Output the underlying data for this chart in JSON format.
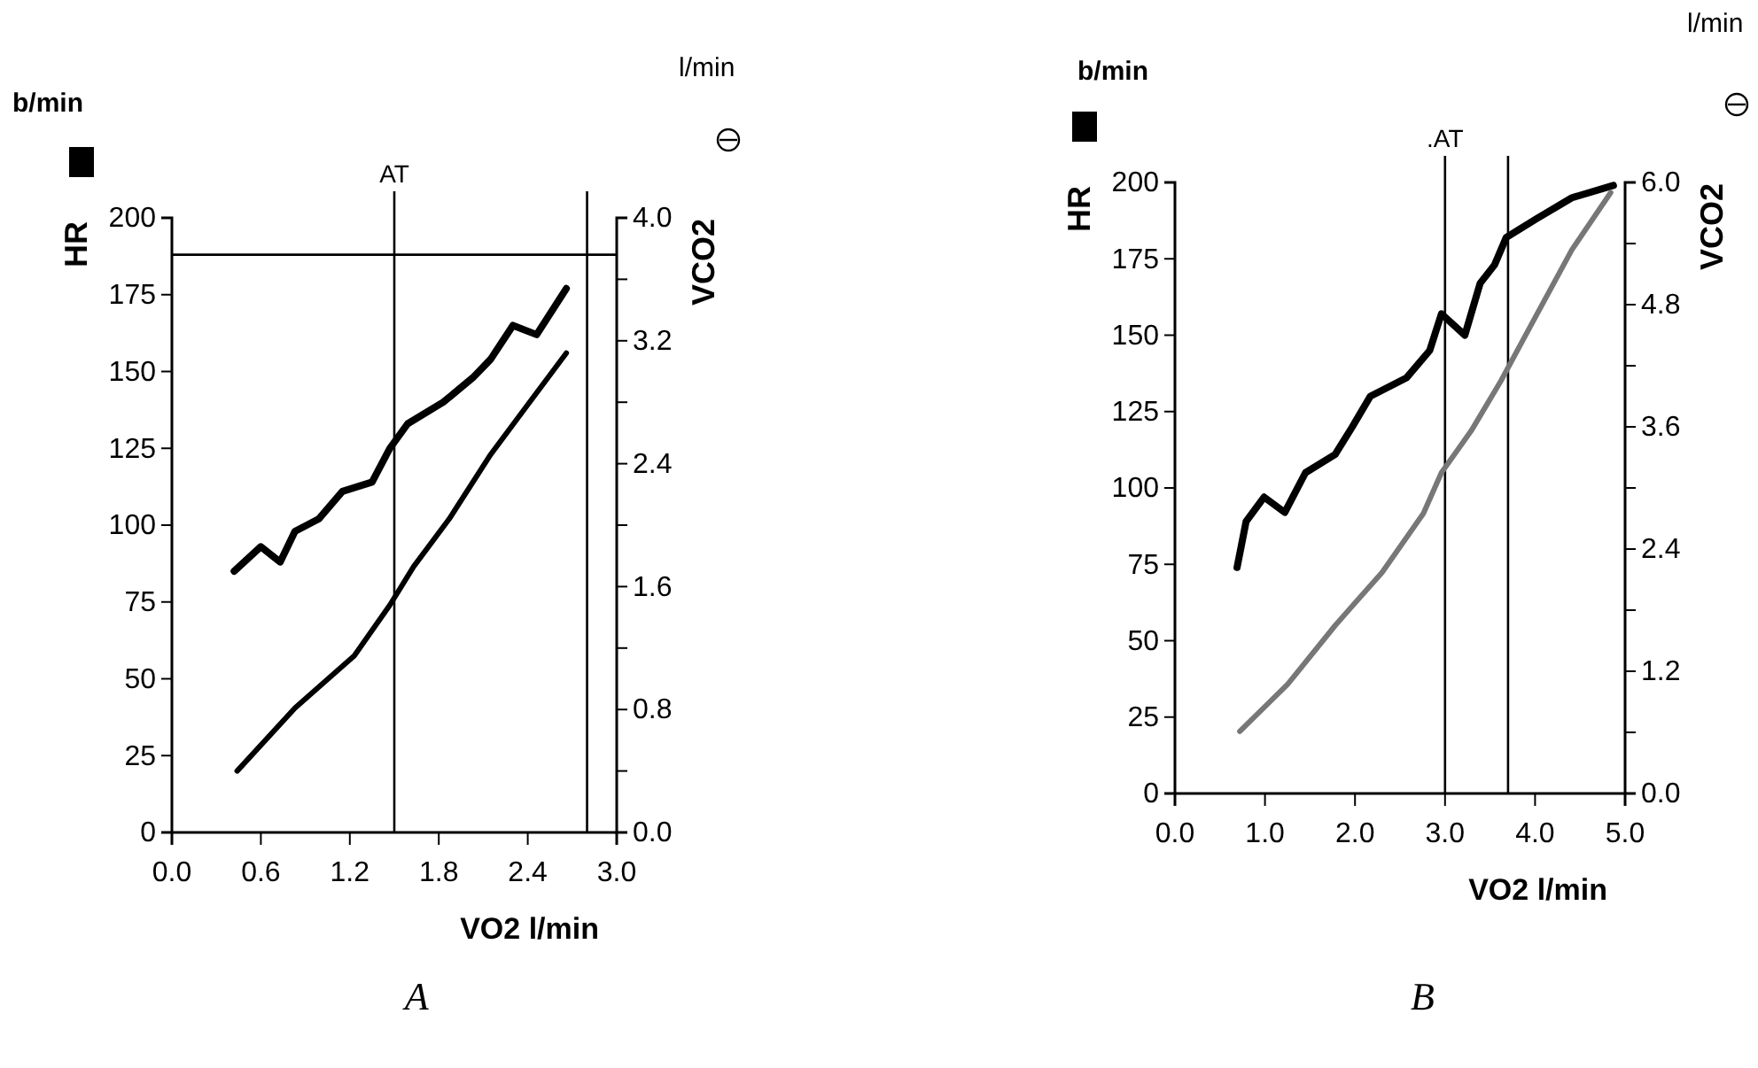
{
  "chart_data": [
    {
      "type": "line",
      "title": "A",
      "xlabel": "VO2 l/min",
      "ylabel": "HR",
      "y2label": "VCO2",
      "annotations": [
        "b/min",
        "l/min"
      ],
      "marker": "none",
      "grid": false,
      "xlim": [
        0,
        3.0
      ],
      "xticks": [
        {
          "value": 0,
          "label": "0.0"
        },
        {
          "value": 0.6,
          "label": "0.6"
        },
        {
          "value": 1.2,
          "label": "1.2"
        },
        {
          "value": 1.8,
          "label": "1.8"
        },
        {
          "value": 2.4,
          "label": "2.4"
        },
        {
          "value": 3.0,
          "label": "3.0"
        }
      ],
      "ylim": [
        0,
        200
      ],
      "yticks": [
        0,
        25,
        50,
        75,
        100,
        125,
        150,
        175,
        200
      ],
      "y2lim": [
        0,
        4.0
      ],
      "y2ticks": [
        {
          "value": 0,
          "label": "0.0"
        },
        {
          "value": 0.4,
          "label": null
        },
        {
          "value": 0.8,
          "label": "0.8"
        },
        {
          "value": 1.2,
          "label": null
        },
        {
          "value": 1.6,
          "label": "1.6"
        },
        {
          "value": 2.0,
          "label": null
        },
        {
          "value": 2.4,
          "label": "2.4"
        },
        {
          "value": 2.8,
          "label": null
        },
        {
          "value": 3.2,
          "label": "3.2"
        },
        {
          "value": 3.6,
          "label": null
        },
        {
          "value": 4.0,
          "label": "4.0"
        }
      ],
      "ref_lines": [
        {
          "axis": "x",
          "value": 1.5,
          "label": "AT"
        },
        {
          "axis": "x",
          "value": 2.8,
          "label": null
        },
        {
          "axis": "y",
          "value": 188,
          "label": null
        }
      ],
      "series": [
        {
          "color": "#000000",
          "x": [
            0.42,
            0.6,
            0.73,
            0.83,
            0.99,
            1.15,
            1.35,
            1.47,
            1.59,
            1.83,
            2.03,
            2.15,
            2.3,
            2.46,
            2.66
          ],
          "values": [
            85,
            93,
            88,
            98,
            102,
            111,
            114,
            125,
            133,
            140,
            148,
            154,
            165,
            162,
            177
          ]
        },
        {
          "color": "#000000",
          "axis": "y2",
          "x": [
            0.44,
            0.83,
            1.23,
            1.47,
            1.63,
            1.87,
            2.15,
            2.42,
            2.66
          ],
          "values": [
            0.4,
            0.81,
            1.15,
            1.48,
            1.73,
            2.04,
            2.46,
            2.81,
            3.12
          ]
        }
      ]
    },
    {
      "type": "line",
      "title": "B",
      "xlabel": "VO2 l/min",
      "ylabel": "HR",
      "y2label": "VCO2",
      "annotations": [
        "b/min",
        "l/min"
      ],
      "marker": "none",
      "grid": false,
      "xlim": [
        0,
        5.0
      ],
      "xticks": [
        {
          "value": 0,
          "label": "0.0"
        },
        {
          "value": 1,
          "label": "1.0"
        },
        {
          "value": 2,
          "label": "2.0"
        },
        {
          "value": 3,
          "label": "3.0"
        },
        {
          "value": 4,
          "label": "4.0"
        },
        {
          "value": 5,
          "label": "5.0"
        }
      ],
      "ylim": [
        0,
        200
      ],
      "yticks": [
        0,
        25,
        50,
        75,
        100,
        125,
        150,
        175,
        200
      ],
      "y2lim": [
        0,
        6.0
      ],
      "y2ticks": [
        {
          "value": 0,
          "label": "0.0"
        },
        {
          "value": 0.6,
          "label": null
        },
        {
          "value": 1.2,
          "label": "1.2"
        },
        {
          "value": 1.8,
          "label": null
        },
        {
          "value": 2.4,
          "label": "2.4"
        },
        {
          "value": 3.0,
          "label": null
        },
        {
          "value": 3.6,
          "label": "3.6"
        },
        {
          "value": 4.2,
          "label": null
        },
        {
          "value": 4.8,
          "label": "4.8"
        },
        {
          "value": 5.4,
          "label": null
        },
        {
          "value": 6.0,
          "label": "6.0"
        }
      ],
      "ref_lines": [
        {
          "axis": "x",
          "value": 3.0,
          "label": ".AT"
        },
        {
          "axis": "x",
          "value": 3.7,
          "label": null
        }
      ],
      "series": [
        {
          "color": "#000000",
          "x": [
            0.69,
            0.79,
            0.99,
            1.22,
            1.45,
            1.78,
            1.97,
            2.17,
            2.57,
            2.83,
            2.96,
            3.22,
            3.39,
            3.55,
            3.68,
            4.01,
            4.41,
            4.87
          ],
          "values": [
            74,
            89,
            97,
            92,
            105,
            111,
            120,
            130,
            136,
            145,
            157,
            150,
            167,
            173,
            182,
            188,
            195,
            199
          ]
        },
        {
          "color": "#777777",
          "axis": "y2",
          "x": [
            0.72,
            1.25,
            1.78,
            2.3,
            2.76,
            2.96,
            3.29,
            3.62,
            3.95,
            4.41,
            4.84
          ],
          "values": [
            0.61,
            1.07,
            1.65,
            2.17,
            2.75,
            3.15,
            3.56,
            4.05,
            4.59,
            5.34,
            5.9
          ]
        }
      ]
    }
  ]
}
